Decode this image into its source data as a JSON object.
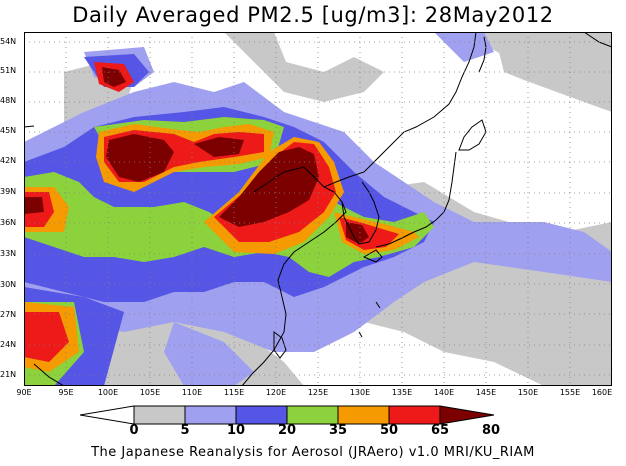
{
  "title": "Daily Averaged PM2.5 [ug/m3]: 28May2012",
  "footer": "The Japanese Reanalysis for Aerosol (JRAero) v1.0 MRI/KU_RIAM",
  "axes": {
    "lat_labels": [
      "54N",
      "51N",
      "48N",
      "45N",
      "42N",
      "39N",
      "36N",
      "33N",
      "30N",
      "27N",
      "24N",
      "21N"
    ],
    "lon_labels": [
      "90E",
      "95E",
      "100E",
      "105E",
      "110E",
      "115E",
      "120E",
      "125E",
      "130E",
      "135E",
      "140E",
      "145E",
      "150E",
      "155E",
      "160E"
    ],
    "lat_range": [
      20,
      55
    ],
    "lon_range": [
      90,
      160
    ]
  },
  "colorbar": {
    "labels": [
      "0",
      "5",
      "10",
      "20",
      "35",
      "50",
      "65",
      "80"
    ],
    "colors": [
      "#ffffff",
      "#c8c8c8",
      "#a0a0f0",
      "#5555e6",
      "#8cd23c",
      "#f59a00",
      "#ee1a1a",
      "#7d0000"
    ]
  }
}
